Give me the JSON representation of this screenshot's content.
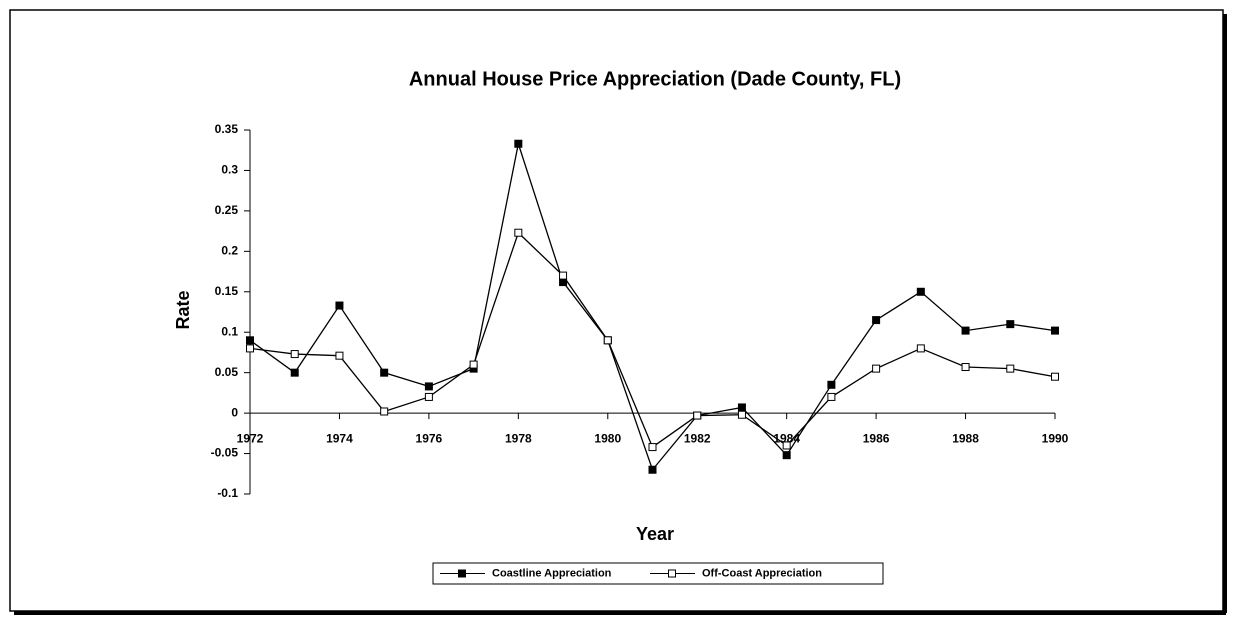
{
  "chart_data": {
    "type": "line",
    "title": "Annual House Price Appreciation (Dade County, FL)",
    "x_label": "Year",
    "y_label": "Rate",
    "x": [
      1972,
      1973,
      1974,
      1975,
      1976,
      1977,
      1978,
      1979,
      1980,
      1981,
      1982,
      1983,
      1984,
      1985,
      1986,
      1987,
      1988,
      1989,
      1990
    ],
    "series": [
      {
        "name": "Coastline Appreciation",
        "color": "#000000",
        "marker": "filled",
        "values": [
          0.09,
          0.05,
          0.133,
          0.05,
          0.033,
          0.055,
          0.333,
          0.162,
          0.09,
          -0.07,
          -0.003,
          0.007,
          -0.052,
          0.035,
          0.115,
          0.15,
          0.102,
          0.11,
          0.102
        ]
      },
      {
        "name": "Off-Coast Appreciation",
        "color": "#000000",
        "marker": "hollow",
        "values": [
          0.08,
          0.073,
          0.071,
          0.002,
          0.02,
          0.06,
          0.223,
          0.17,
          0.09,
          -0.042,
          -0.003,
          -0.002,
          -0.04,
          0.02,
          0.055,
          0.08,
          0.057,
          0.055,
          0.045
        ]
      }
    ],
    "xlim": [
      1972,
      1990
    ],
    "xticks": [
      1972,
      1974,
      1976,
      1978,
      1980,
      1982,
      1984,
      1986,
      1988,
      1990
    ],
    "ylim": [
      -0.1,
      0.35
    ],
    "yticks": [
      0.35,
      0.3,
      0.25,
      0.2,
      0.15,
      0.1,
      0.05,
      0,
      -0.05,
      -0.1
    ],
    "grid": false,
    "legend": "bottom"
  }
}
